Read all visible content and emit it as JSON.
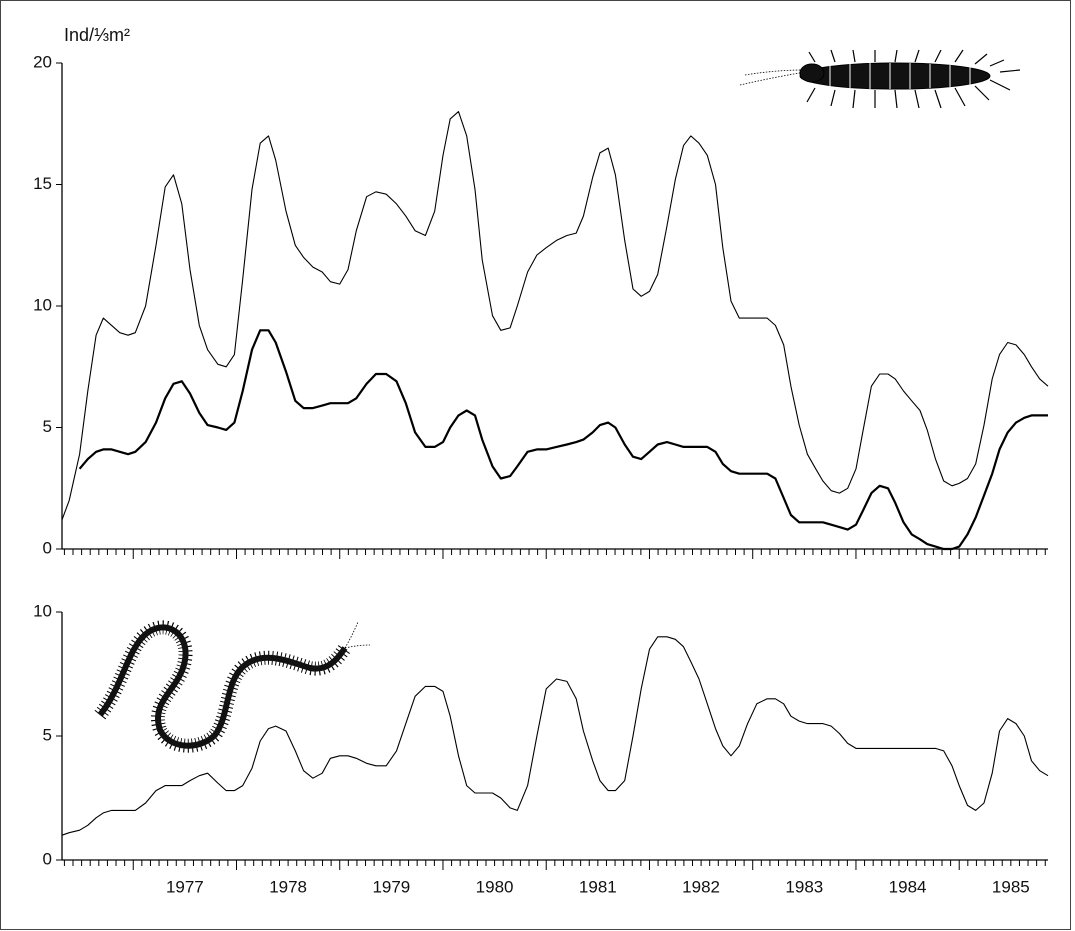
{
  "chart_data": [
    {
      "type": "line",
      "y_label": "Ind/⅓m²",
      "x": [
        1976.31,
        1976.38,
        1976.48,
        1976.56,
        1976.64,
        1976.71,
        1976.79,
        1976.87,
        1976.95,
        1977.02,
        1977.12,
        1977.22,
        1977.31,
        1977.39,
        1977.47,
        1977.55,
        1977.64,
        1977.72,
        1977.82,
        1977.9,
        1977.98,
        1978.06,
        1978.15,
        1978.23,
        1978.31,
        1978.38,
        1978.48,
        1978.57,
        1978.65,
        1978.74,
        1978.83,
        1978.91,
        1979.0,
        1979.08,
        1979.16,
        1979.26,
        1979.35,
        1979.45,
        1979.55,
        1979.64,
        1979.73,
        1979.83,
        1979.92,
        1980.0,
        1980.07,
        1980.15,
        1980.23,
        1980.31,
        1980.38,
        1980.48,
        1980.56,
        1980.65,
        1980.72,
        1980.82,
        1980.91,
        1981.0,
        1981.1,
        1981.2,
        1981.29,
        1981.36,
        1981.45,
        1981.52,
        1981.6,
        1981.67,
        1981.76,
        1981.84,
        1981.92,
        1982.0,
        1982.08,
        1982.17,
        1982.25,
        1982.33,
        1982.4,
        1982.48,
        1982.56,
        1982.64,
        1982.71,
        1982.79,
        1982.87,
        1982.95,
        1983.04,
        1983.14,
        1983.22,
        1983.3,
        1983.37,
        1983.45,
        1983.53,
        1983.61,
        1983.68,
        1983.76,
        1983.84,
        1983.92,
        1984.0,
        1984.07,
        1984.15,
        1984.23,
        1984.31,
        1984.38,
        1984.46,
        1984.54,
        1984.62,
        1984.69,
        1984.77,
        1984.85,
        1984.93,
        1985.0,
        1985.08,
        1985.16,
        1985.24,
        1985.32,
        1985.39,
        1985.47,
        1985.55,
        1985.63,
        1985.7,
        1985.78,
        1985.86
      ],
      "series": [
        {
          "color": "#000000",
          "values": [
            1.2,
            2.0,
            3.9,
            6.5,
            8.8,
            9.5,
            9.2,
            8.9,
            8.8,
            8.9,
            10.0,
            12.5,
            14.9,
            15.4,
            14.2,
            11.5,
            9.2,
            8.2,
            7.6,
            7.5,
            8.0,
            11.1,
            14.8,
            16.7,
            17.0,
            16.0,
            13.9,
            12.5,
            12.0,
            11.6,
            11.4,
            11.0,
            10.9,
            11.5,
            13.1,
            14.5,
            14.7,
            14.6,
            14.2,
            13.7,
            13.1,
            12.9,
            13.9,
            16.2,
            17.7,
            18.0,
            17.0,
            14.8,
            11.9,
            9.6,
            9.0,
            9.1,
            10.0,
            11.4,
            12.1,
            12.4,
            12.7,
            12.9,
            13.0,
            13.7,
            15.3,
            16.3,
            16.5,
            15.4,
            12.7,
            10.7,
            10.4,
            10.6,
            11.3,
            13.3,
            15.2,
            16.6,
            17.0,
            16.7,
            16.2,
            15.0,
            12.4,
            10.2,
            9.5,
            9.5,
            9.5,
            9.5,
            9.2,
            8.4,
            6.7,
            5.1,
            3.9,
            3.3,
            2.8,
            2.4,
            2.3,
            2.5,
            3.3,
            4.9,
            6.7,
            7.2,
            7.2,
            7.0,
            6.5,
            6.1,
            5.7,
            4.9,
            3.7,
            2.8,
            2.6,
            2.7,
            2.9,
            3.5,
            5.1,
            7.0,
            8.0,
            8.5,
            8.4,
            8.0,
            7.5,
            7.0,
            6.7
          ]
        },
        {
          "color": "#000000",
          "values": [
            null,
            null,
            3.3,
            3.7,
            4.0,
            4.1,
            4.1,
            4.0,
            3.9,
            4.0,
            4.4,
            5.2,
            6.2,
            6.8,
            6.9,
            6.4,
            5.6,
            5.1,
            5.0,
            4.9,
            5.2,
            6.5,
            8.2,
            9.0,
            9.0,
            8.5,
            7.3,
            6.1,
            5.8,
            5.8,
            5.9,
            6.0,
            6.0,
            6.0,
            6.2,
            6.8,
            7.2,
            7.2,
            6.9,
            6.0,
            4.8,
            4.2,
            4.2,
            4.4,
            5.0,
            5.5,
            5.7,
            5.5,
            4.5,
            3.4,
            2.9,
            3.0,
            3.4,
            4.0,
            4.1,
            4.1,
            4.2,
            4.3,
            4.4,
            4.5,
            4.8,
            5.1,
            5.2,
            5.0,
            4.3,
            3.8,
            3.7,
            4.0,
            4.3,
            4.4,
            4.3,
            4.2,
            4.2,
            4.2,
            4.2,
            4.0,
            3.5,
            3.2,
            3.1,
            3.1,
            3.1,
            3.1,
            2.9,
            2.1,
            1.4,
            1.1,
            1.1,
            1.1,
            1.1,
            1.0,
            0.9,
            0.8,
            1.0,
            1.6,
            2.3,
            2.6,
            2.5,
            1.9,
            1.1,
            0.6,
            0.4,
            0.2,
            0.1,
            0.0,
            0.0,
            0.1,
            0.6,
            1.3,
            2.2,
            3.1,
            4.1,
            4.8,
            5.2,
            5.4,
            5.5,
            5.5,
            5.5
          ]
        }
      ],
      "xlim": [
        1976.31,
        1985.86
      ],
      "ylim": [
        0,
        20
      ],
      "yticks": [
        0,
        5,
        10,
        15,
        20
      ]
    },
    {
      "type": "line",
      "x": [
        1976.31,
        1976.38,
        1976.48,
        1976.56,
        1976.64,
        1976.71,
        1976.79,
        1976.87,
        1976.95,
        1977.02,
        1977.12,
        1977.22,
        1977.31,
        1977.39,
        1977.47,
        1977.55,
        1977.64,
        1977.72,
        1977.82,
        1977.9,
        1977.98,
        1978.06,
        1978.15,
        1978.23,
        1978.31,
        1978.38,
        1978.48,
        1978.57,
        1978.65,
        1978.74,
        1978.83,
        1978.91,
        1979.0,
        1979.08,
        1979.16,
        1979.26,
        1979.35,
        1979.45,
        1979.55,
        1979.64,
        1979.73,
        1979.83,
        1979.92,
        1980.0,
        1980.07,
        1980.15,
        1980.23,
        1980.31,
        1980.38,
        1980.48,
        1980.56,
        1980.65,
        1980.72,
        1980.82,
        1980.91,
        1981.0,
        1981.1,
        1981.2,
        1981.29,
        1981.36,
        1981.45,
        1981.52,
        1981.6,
        1981.67,
        1981.76,
        1981.84,
        1981.92,
        1982.0,
        1982.08,
        1982.17,
        1982.25,
        1982.33,
        1982.4,
        1982.48,
        1982.56,
        1982.64,
        1982.71,
        1982.79,
        1982.87,
        1982.95,
        1983.04,
        1983.14,
        1983.22,
        1983.3,
        1983.37,
        1983.45,
        1983.53,
        1983.61,
        1983.68,
        1983.76,
        1983.84,
        1983.92,
        1984.0,
        1984.07,
        1984.15,
        1984.23,
        1984.31,
        1984.38,
        1984.46,
        1984.54,
        1984.62,
        1984.69,
        1984.77,
        1984.85,
        1984.93,
        1985.0,
        1985.08,
        1985.16,
        1985.24,
        1985.32,
        1985.39,
        1985.47,
        1985.55,
        1985.63,
        1985.7,
        1985.78,
        1985.86
      ],
      "series": [
        {
          "color": "#000000",
          "values": [
            1.0,
            1.1,
            1.2,
            1.4,
            1.7,
            1.9,
            2.0,
            2.0,
            2.0,
            2.0,
            2.3,
            2.8,
            3.0,
            3.0,
            3.0,
            3.2,
            3.4,
            3.5,
            3.1,
            2.8,
            2.8,
            3.0,
            3.7,
            4.8,
            5.3,
            5.4,
            5.2,
            4.4,
            3.6,
            3.3,
            3.5,
            4.1,
            4.2,
            4.2,
            4.1,
            3.9,
            3.8,
            3.8,
            4.4,
            5.5,
            6.6,
            7.0,
            7.0,
            6.8,
            5.8,
            4.2,
            3.0,
            2.7,
            2.7,
            2.7,
            2.5,
            2.1,
            2.0,
            3.0,
            5.0,
            6.9,
            7.3,
            7.2,
            6.5,
            5.2,
            4.0,
            3.2,
            2.8,
            2.8,
            3.2,
            5.0,
            6.9,
            8.5,
            9.0,
            9.0,
            8.9,
            8.6,
            8.0,
            7.3,
            6.3,
            5.3,
            4.6,
            4.2,
            4.6,
            5.5,
            6.3,
            6.5,
            6.5,
            6.3,
            5.8,
            5.6,
            5.5,
            5.5,
            5.5,
            5.4,
            5.1,
            4.7,
            4.5,
            4.5,
            4.5,
            4.5,
            4.5,
            4.5,
            4.5,
            4.5,
            4.5,
            4.5,
            4.5,
            4.4,
            3.8,
            3.0,
            2.2,
            2.0,
            2.3,
            3.5,
            5.2,
            5.7,
            5.5,
            5.0,
            4.0,
            3.6,
            3.4
          ]
        }
      ],
      "xlim": [
        1976.31,
        1985.86
      ],
      "ylim": [
        0,
        10
      ],
      "yticks": [
        0,
        5,
        10
      ],
      "xticks": [
        {
          "value": 1977.5,
          "label": "1977"
        },
        {
          "value": 1978.5,
          "label": "1978"
        },
        {
          "value": 1979.5,
          "label": "1979"
        },
        {
          "value": 1980.5,
          "label": "1980"
        },
        {
          "value": 1981.5,
          "label": "1981"
        },
        {
          "value": 1982.5,
          "label": "1982"
        },
        {
          "value": 1983.5,
          "label": "1983"
        },
        {
          "value": 1984.5,
          "label": "1984"
        },
        {
          "value": 1985.5,
          "label": "1985"
        }
      ]
    }
  ]
}
